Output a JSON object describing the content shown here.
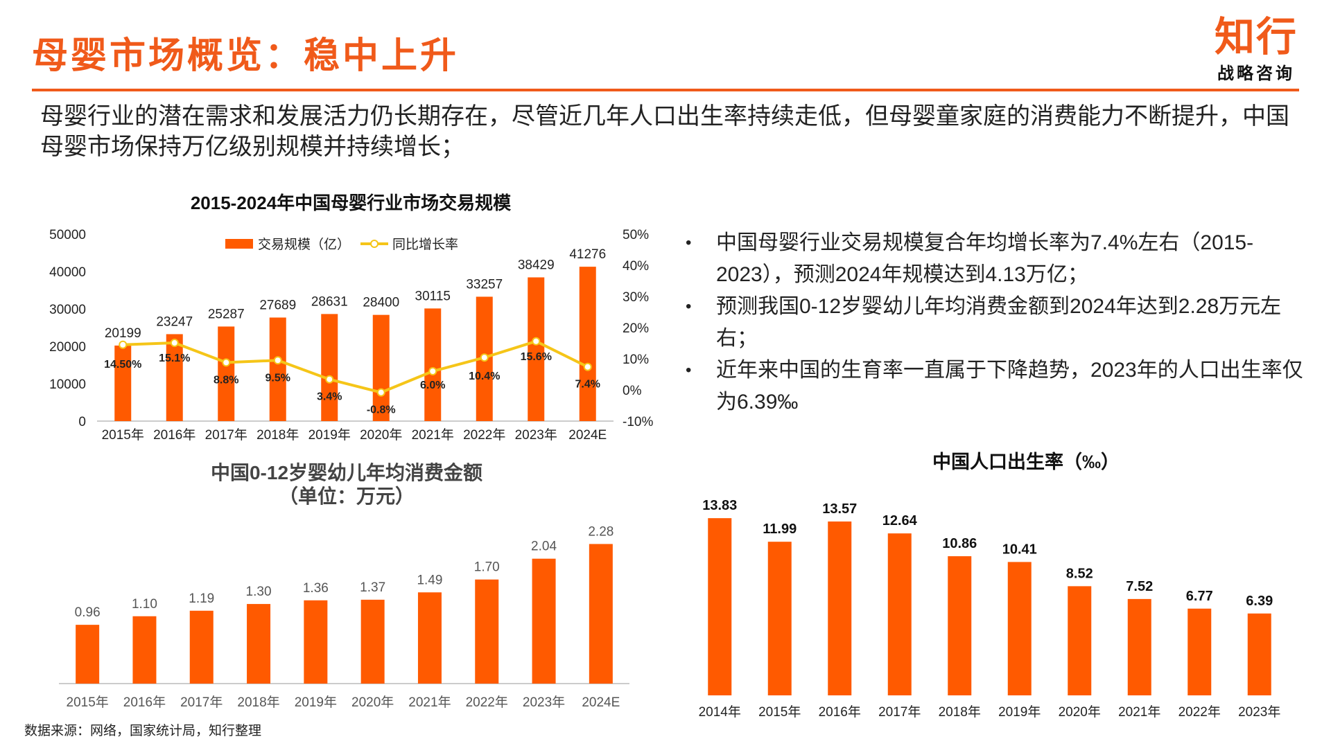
{
  "header": {
    "title": "母婴市场概览：稳中上升",
    "logo_main": "知行",
    "logo_sub": "战略咨询"
  },
  "intro": "母婴行业的潜在需求和发展活力仍长期存在，尽管近几年人口出生率持续走低，但母婴童家庭的消费能力不断提升，中国母婴市场保持万亿级别规模并持续增长；",
  "bullets": [
    "中国母婴行业交易规模复合年均增长率为7.4%左右（2015-2023），预测2024年规模达到4.13万亿；",
    "预测我国0-12岁婴幼儿年均消费金额到2024年达到2.28万元左右；",
    "近年来中国的生育率一直属于下降趋势，2023年的人口出生率仅为6.39‰"
  ],
  "source": "数据来源：网络，国家统计局，知行整理",
  "colors": {
    "accent": "#f05a1a",
    "bar": "#ff5a00",
    "line": "#f5c518"
  },
  "chart_data": [
    {
      "type": "bar+line",
      "title": "2015-2024年中国母婴行业市场交易规模",
      "categories": [
        "2015年",
        "2016年",
        "2017年",
        "2018年",
        "2019年",
        "2020年",
        "2021年",
        "2022年",
        "2023年",
        "2024E"
      ],
      "series": [
        {
          "name": "交易规模（亿）",
          "type": "bar",
          "values": [
            20199,
            23247,
            25287,
            27689,
            28631,
            28400,
            30115,
            33257,
            38429,
            41276
          ],
          "labels": [
            "20199",
            "23247",
            "25287",
            "27689",
            "28631",
            "28400",
            "30115",
            "33257",
            "38429",
            "41276"
          ]
        },
        {
          "name": "同比增长率",
          "type": "line",
          "axis": "right",
          "values": [
            14.5,
            15.1,
            8.8,
            9.5,
            3.4,
            -0.8,
            6.0,
            10.4,
            15.6,
            7.4
          ],
          "labels": [
            "14.50%",
            "15.1%",
            "8.8%",
            "9.5%",
            "3.4%",
            "-0.8%",
            "6.0%",
            "10.4%",
            "15.6%",
            "7.4%"
          ]
        }
      ],
      "yticks_left": [
        "0",
        "10000",
        "20000",
        "30000",
        "40000",
        "50000"
      ],
      "ylim_left": [
        0,
        50000
      ],
      "yticks_right": [
        "-10%",
        "0%",
        "10%",
        "20%",
        "30%",
        "40%",
        "50%"
      ],
      "ylim_right": [
        -10,
        50
      ],
      "legend": "top"
    },
    {
      "type": "bar",
      "title": "中国0-12岁婴幼儿年均消费金额",
      "subtitle": "（单位：万元）",
      "categories": [
        "2015年",
        "2016年",
        "2017年",
        "2018年",
        "2019年",
        "2020年",
        "2021年",
        "2022年",
        "2023年",
        "2024E"
      ],
      "values": [
        0.96,
        1.1,
        1.19,
        1.3,
        1.36,
        1.37,
        1.49,
        1.7,
        2.04,
        2.28
      ],
      "labels": [
        "0.96",
        "1.10",
        "1.19",
        "1.30",
        "1.36",
        "1.37",
        "1.49",
        "1.70",
        "2.04",
        "2.28"
      ],
      "ylim": [
        0,
        2.5
      ]
    },
    {
      "type": "bar",
      "title": "中国人口出生率（‰）",
      "categories": [
        "2014年",
        "2015年",
        "2016年",
        "2017年",
        "2018年",
        "2019年",
        "2020年",
        "2021年",
        "2022年",
        "2023年"
      ],
      "values": [
        13.83,
        11.99,
        13.57,
        12.64,
        10.86,
        10.41,
        8.52,
        7.52,
        6.77,
        6.39
      ],
      "labels": [
        "13.83",
        "11.99",
        "13.57",
        "12.64",
        "10.86",
        "10.41",
        "8.52",
        "7.52",
        "6.77",
        "6.39"
      ],
      "ylim": [
        0,
        16
      ]
    }
  ]
}
